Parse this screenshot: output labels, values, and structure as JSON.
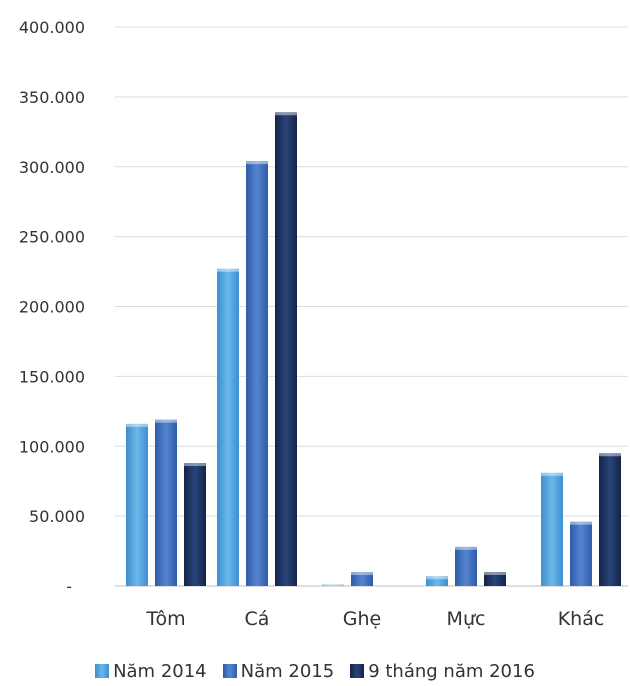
{
  "chart_data": {
    "type": "bar",
    "title": "",
    "xlabel": "",
    "ylabel": "",
    "categories": [
      "Tôm",
      "Cá",
      "Ghẹ",
      "Mực",
      "Khác"
    ],
    "series": [
      {
        "name": "Năm 2014",
        "color": "#5aa6dd",
        "values": [
          116000,
          227000,
          1000,
          7000,
          81000
        ]
      },
      {
        "name": "Năm 2015",
        "color": "#3f6fc0",
        "values": [
          119000,
          304000,
          10000,
          28000,
          46000
        ]
      },
      {
        "name": "9 tháng năm 2016",
        "color": "#1b2f5e",
        "values": [
          88000,
          339000,
          0,
          10000,
          95000
        ]
      }
    ],
    "ylim": [
      0,
      400000
    ],
    "yticks": [
      {
        "value": 0,
        "label": "-"
      },
      {
        "value": 50000,
        "label": "50.000"
      },
      {
        "value": 100000,
        "label": "100.000"
      },
      {
        "value": 150000,
        "label": "150.000"
      },
      {
        "value": 200000,
        "label": "200.000"
      },
      {
        "value": 250000,
        "label": "250.000"
      },
      {
        "value": 300000,
        "label": "300.000"
      },
      {
        "value": 350000,
        "label": "350.000"
      },
      {
        "value": 400000,
        "label": "400.000"
      }
    ],
    "grid": true,
    "legend_position": "bottom"
  }
}
